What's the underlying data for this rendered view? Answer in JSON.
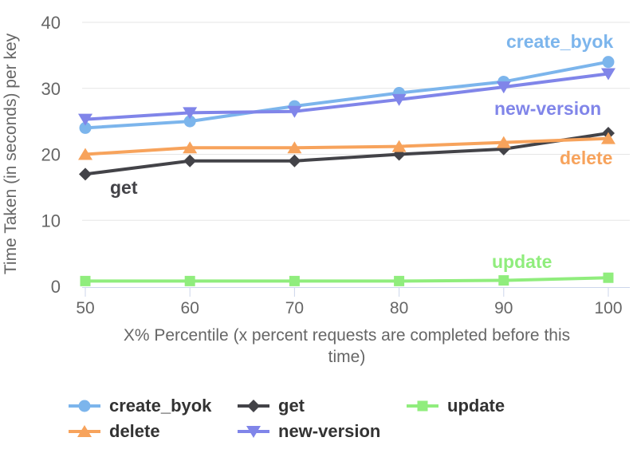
{
  "chart_data": {
    "type": "line",
    "title": "",
    "x": [
      50,
      60,
      70,
      80,
      90,
      100
    ],
    "xlabel": "X% Percentile (x percent requests are completed before this time)",
    "xlabel_lines": [
      "X% Percentile (x percent requests are completed before this",
      "time)"
    ],
    "ylabel": "Time Taken (in seconds) per key",
    "xlim": [
      50,
      100
    ],
    "ylim": [
      0,
      40
    ],
    "yticks": [
      0,
      10,
      20,
      30,
      40
    ],
    "grid": true,
    "legend_position": "bottom",
    "series": [
      {
        "name": "create_byok",
        "color": "#7cb5ec",
        "marker": "circle",
        "values": [
          24,
          25,
          27.3,
          29.3,
          31,
          34
        ]
      },
      {
        "name": "get",
        "color": "#434348",
        "marker": "diamond",
        "values": [
          17,
          19,
          19,
          20,
          20.8,
          23.2
        ]
      },
      {
        "name": "update",
        "color": "#90ed7d",
        "marker": "square",
        "values": [
          0.8,
          0.8,
          0.8,
          0.8,
          0.9,
          1.3
        ]
      },
      {
        "name": "delete",
        "color": "#f7a35c",
        "marker": "triangle",
        "values": [
          20,
          21,
          21,
          21.2,
          21.8,
          22.4
        ]
      },
      {
        "name": "new-version",
        "color": "#8085e9",
        "marker": "triangle-down",
        "values": [
          25.3,
          26.3,
          26.5,
          28.3,
          30.2,
          32.2
        ]
      }
    ],
    "inline_labels": [
      "create_byok",
      "new-version",
      "delete",
      "get",
      "update"
    ]
  },
  "colors": {
    "axis_text": "#666666",
    "legend_text": "#333333",
    "gridline": "#e6e6e6",
    "axis_line": "#ccd6eb",
    "background": "#ffffff"
  }
}
